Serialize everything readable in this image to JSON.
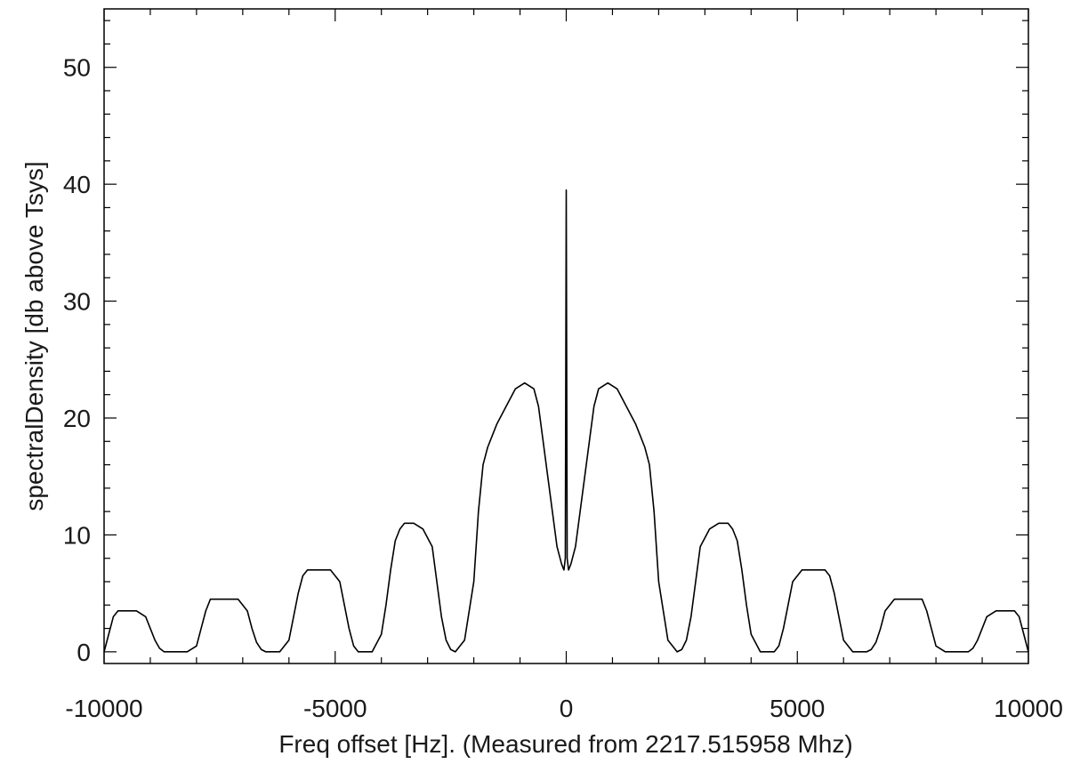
{
  "chart_data": {
    "type": "line",
    "title": "",
    "xlabel": "Freq offset [Hz]. (Measured from 2217.515958 Mhz)",
    "ylabel": "spectralDensity [db above Tsys]",
    "xlim": [
      -10000,
      10000
    ],
    "ylim": [
      -1,
      55
    ],
    "x_ticks": [
      -10000,
      -5000,
      0,
      5000,
      10000
    ],
    "x_tick_labels": [
      "-10000",
      "-5000",
      "0",
      "5000",
      "10000"
    ],
    "y_ticks": [
      0,
      10,
      20,
      30,
      40,
      50
    ],
    "y_tick_labels": [
      "0",
      "10",
      "20",
      "30",
      "40",
      "50"
    ],
    "grid": false,
    "legend": "none",
    "line_color": "#000000",
    "series": [
      {
        "x": [
          -10000,
          -9900,
          -9800,
          -9700,
          -9500,
          -9300,
          -9100,
          -9000,
          -8900,
          -8800,
          -8700,
          -8600,
          -8400,
          -8200,
          -8000,
          -7900,
          -7800,
          -7700,
          -7600,
          -7500,
          -7300,
          -7100,
          -6900,
          -6800,
          -6700,
          -6600,
          -6500,
          -6400,
          -6200,
          -6000,
          -5900,
          -5800,
          -5700,
          -5600,
          -5500,
          -5300,
          -5100,
          -4900,
          -4800,
          -4700,
          -4600,
          -4500,
          -4400,
          -4200,
          -4000,
          -3900,
          -3800,
          -3700,
          -3600,
          -3500,
          -3300,
          -3100,
          -2900,
          -2800,
          -2700,
          -2600,
          -2500,
          -2400,
          -2200,
          -2000,
          -1900,
          -1800,
          -1700,
          -1600,
          -1500,
          -1300,
          -1100,
          -900,
          -700,
          -600,
          -500,
          -400,
          -300,
          -200,
          -100,
          -50,
          -20,
          0,
          20,
          50,
          100,
          200,
          300,
          400,
          500,
          600,
          700,
          900,
          1100,
          1300,
          1500,
          1600,
          1700,
          1800,
          1900,
          2000,
          2200,
          2400,
          2500,
          2600,
          2700,
          2800,
          2900,
          3100,
          3300,
          3500,
          3600,
          3700,
          3800,
          3900,
          4000,
          4200,
          4400,
          4500,
          4600,
          4700,
          4800,
          4900,
          5100,
          5300,
          5500,
          5600,
          5700,
          5800,
          5900,
          6000,
          6200,
          6400,
          6500,
          6600,
          6700,
          6800,
          6900,
          7100,
          7300,
          7500,
          7600,
          7700,
          7800,
          7900,
          8000,
          8200,
          8400,
          8600,
          8700,
          8800,
          8900,
          9000,
          9100,
          9300,
          9500,
          9700,
          9800,
          9900,
          10000
        ],
        "y": [
          0,
          1.5,
          3,
          3.5,
          3.5,
          3.5,
          3,
          2,
          1,
          0.3,
          0,
          0,
          0,
          0,
          0.5,
          2,
          3.5,
          4.5,
          4.5,
          4.5,
          4.5,
          4.5,
          3.5,
          2,
          0.8,
          0.2,
          0,
          0,
          0,
          1,
          3,
          5,
          6.5,
          7,
          7,
          7,
          7,
          6,
          4,
          2,
          0.5,
          0,
          0,
          0,
          1.5,
          4,
          7,
          9.5,
          10.5,
          11,
          11,
          10.5,
          9,
          6,
          3,
          1,
          0.2,
          0,
          1,
          6,
          12,
          16,
          17.5,
          18.5,
          19.5,
          21,
          22.5,
          23,
          22.5,
          21,
          18,
          15,
          12,
          9,
          7.5,
          7,
          8,
          39.5,
          8,
          7,
          7.5,
          9,
          12,
          15,
          18,
          21,
          22.5,
          23,
          22.5,
          21,
          19.5,
          18.5,
          17.5,
          16,
          12,
          6,
          1,
          0,
          0.2,
          1,
          3,
          6,
          9,
          10.5,
          11,
          11,
          10.5,
          9.5,
          7,
          4,
          1.5,
          0,
          0,
          0,
          0.5,
          2,
          4,
          6,
          7,
          7,
          7,
          7,
          6.5,
          5,
          3,
          1,
          0,
          0,
          0,
          0.2,
          0.8,
          2,
          3.5,
          4.5,
          4.5,
          4.5,
          4.5,
          4.5,
          3.5,
          2,
          0.5,
          0,
          0,
          0,
          0,
          0.3,
          1,
          2,
          3,
          3.5,
          3.5,
          3.5,
          3,
          1.5,
          0
        ]
      }
    ]
  }
}
